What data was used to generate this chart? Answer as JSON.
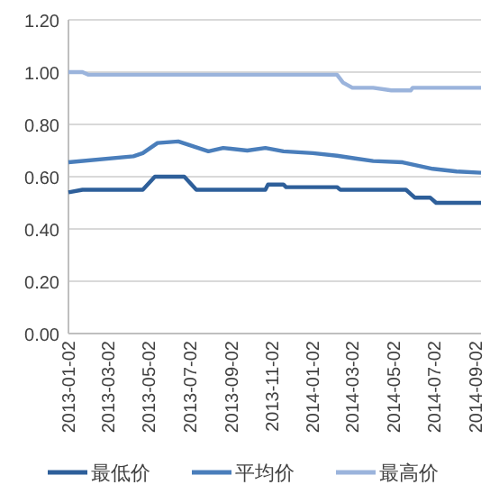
{
  "chart_data": {
    "type": "line",
    "x": [
      "2013-01-02",
      "2013-01-23",
      "2013-04-09",
      "2013-04-23",
      "2013-05-11",
      "2013-06-24",
      "2013-07-12",
      "2013-10-23",
      "2013-10-27",
      "2013-11-19",
      "2013-11-23",
      "2014-02-07",
      "2014-02-12",
      "2014-05-21",
      "2014-06-03",
      "2014-06-26",
      "2014-07-05",
      "2014-09-10"
    ],
    "series": [
      {
        "name": "最低价",
        "color": "#2e5f9a",
        "values": [
          0.54,
          0.55,
          0.55,
          0.55,
          0.6,
          0.6,
          0.55,
          0.55,
          0.57,
          0.57,
          0.56,
          0.56,
          0.55,
          0.55,
          0.52,
          0.52,
          0.5,
          0.5
        ]
      },
      {
        "name": "平均价",
        "color": "#4a7ebb",
        "x": [
          "2013-01-02",
          "2013-04-09",
          "2013-04-23",
          "2013-05-15",
          "2013-06-15",
          "2013-07-30",
          "2013-08-21",
          "2013-09-26",
          "2013-10-23",
          "2013-11-19",
          "2014-01-02",
          "2014-02-07",
          "2014-03-06",
          "2014-04-02",
          "2014-05-16",
          "2014-06-30",
          "2014-08-05",
          "2014-09-10"
        ],
        "values": [
          0.655,
          0.678,
          0.69,
          0.729,
          0.735,
          0.697,
          0.71,
          0.7,
          0.71,
          0.697,
          0.69,
          0.68,
          0.67,
          0.66,
          0.655,
          0.63,
          0.62,
          0.615
        ]
      },
      {
        "name": "最高价",
        "color": "#9bb4dc",
        "x": [
          "2013-01-02",
          "2013-01-23",
          "2013-02-01",
          "2014-02-07",
          "2014-02-16",
          "2014-03-02",
          "2014-04-02",
          "2014-04-29",
          "2014-05-28",
          "2014-05-31",
          "2014-09-10"
        ],
        "values": [
          1.0,
          1.0,
          0.99,
          0.99,
          0.96,
          0.94,
          0.94,
          0.93,
          0.93,
          0.94,
          0.94
        ]
      }
    ],
    "xlim": [
      "2013-01-02",
      "2014-09-10"
    ],
    "xticks": [
      "2013-01-02",
      "2013-03-02",
      "2013-05-02",
      "2013-07-02",
      "2013-09-02",
      "2013-11-02",
      "2014-01-02",
      "2014-03-02",
      "2014-05-02",
      "2014-07-02",
      "2014-09-02"
    ],
    "ylim": [
      0,
      1.2
    ],
    "yticks": [
      {
        "value": 0,
        "label": "0.00"
      },
      {
        "value": 0.2,
        "label": "0.20"
      },
      {
        "value": 0.4,
        "label": "0.40"
      },
      {
        "value": 0.6,
        "label": "0.60"
      },
      {
        "value": 0.8,
        "label": "0.80"
      },
      {
        "value": 1.0,
        "label": "1.00"
      },
      {
        "value": 1.2,
        "label": "1.20"
      }
    ],
    "grid": "y",
    "legend": "bottom",
    "marker": "none",
    "line_style": "solid"
  }
}
